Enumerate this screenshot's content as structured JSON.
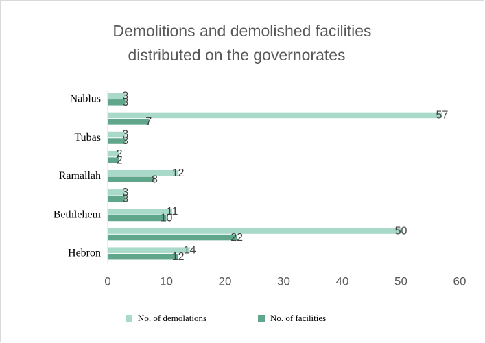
{
  "chart_data": {
    "type": "bar",
    "orientation": "horizontal",
    "title": [
      "Demolitions and demolished facilities",
      "distributed on the governorates"
    ],
    "categories": [
      "Hebron",
      null,
      "Bethlehem",
      null,
      "Ramallah",
      null,
      "Tubas",
      null,
      "Nablus"
    ],
    "series": [
      {
        "name": "No. of demolations",
        "color": "#a9d9c9",
        "values": [
          14,
          50,
          11,
          3,
          12,
          2,
          3,
          57,
          3
        ]
      },
      {
        "name": "No. of facilities",
        "color": "#5fa68b",
        "values": [
          12,
          22,
          10,
          3,
          8,
          2,
          3,
          7,
          3
        ]
      }
    ],
    "xlim": [
      0,
      60
    ],
    "xticks": [
      0,
      10,
      20,
      30,
      40,
      50,
      60
    ],
    "grid": false,
    "legend": "bottom"
  }
}
